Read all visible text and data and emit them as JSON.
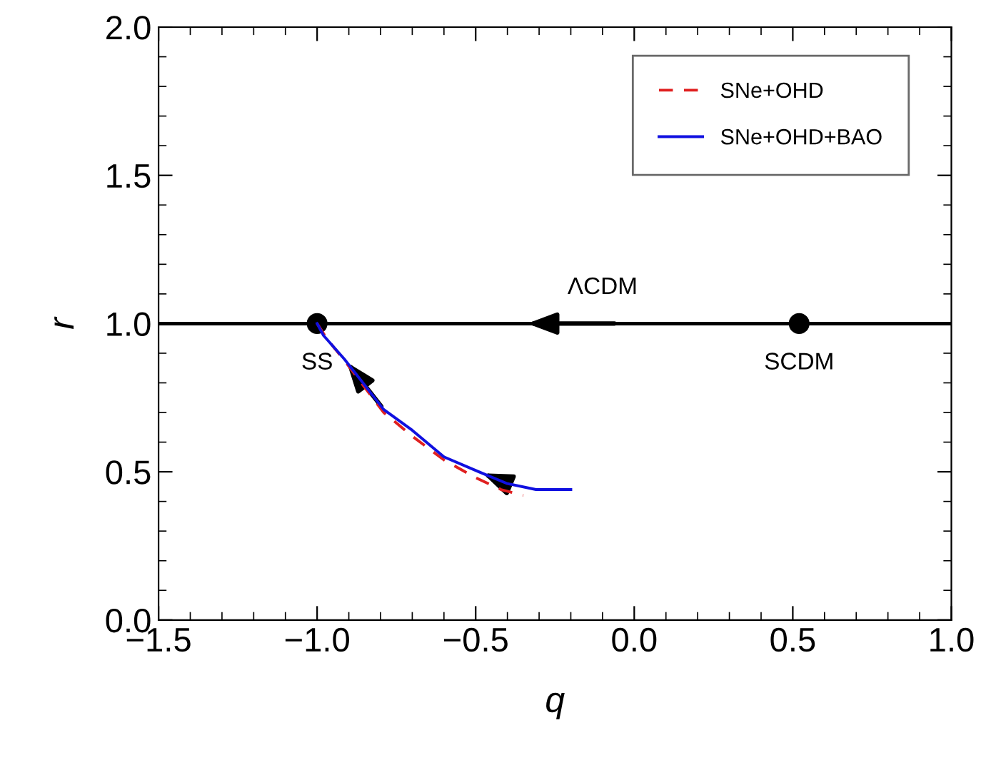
{
  "chart_data": {
    "type": "line",
    "xlabel": "q",
    "ylabel": "r",
    "xlim": [
      -1.5,
      1.0
    ],
    "xticks": [
      {
        "value": -1.5,
        "label": "−1.5"
      },
      {
        "value": -1.0,
        "label": "−1.0"
      },
      {
        "value": -0.5,
        "label": "−0.5"
      },
      {
        "value": 0.0,
        "label": "0.0"
      },
      0.5,
      {
        "value": 1.0,
        "label": "1.0"
      }
    ],
    "ylim": [
      0.0,
      2.0
    ],
    "yticks": [
      {
        "value": 0.0,
        "label": "0.0"
      },
      0.5,
      {
        "value": 1.0,
        "label": "1.0"
      },
      1.5,
      {
        "value": 2.0,
        "label": "2.0"
      }
    ],
    "legend": "top right",
    "series": [
      {
        "name": "SNe+OHD",
        "color": "#e02020",
        "line_style": "dashed",
        "x": [
          -1.0,
          -0.97,
          -0.91,
          -0.79,
          -0.7,
          -0.6,
          -0.5,
          -0.42,
          -0.35
        ],
        "values": [
          1.0,
          0.95,
          0.87,
          0.7,
          0.62,
          0.54,
          0.48,
          0.44,
          0.42
        ]
      },
      {
        "name": "SNe+OHD+BAO",
        "color": "#1010e0",
        "line_style": "solid",
        "x": [
          -1.0,
          -0.98,
          -0.914,
          -0.79,
          -0.7,
          -0.6,
          -0.49,
          -0.4,
          -0.31,
          -0.2
        ],
        "values": [
          1.0,
          0.96,
          0.88,
          0.71,
          0.64,
          0.55,
          0.5,
          0.46,
          0.44,
          0.44
        ]
      },
      {
        "type": "scatter",
        "color": "#000000",
        "marker": "circle",
        "x": [
          -1.0,
          0.52
        ],
        "values": [
          1.0,
          1.0
        ]
      }
    ],
    "ref_lines": [
      {
        "axis": "y",
        "value": 1.0,
        "color": "#000000"
      }
    ],
    "annotations": [
      {
        "text": "SS",
        "x": -1.0,
        "y": 1.0
      },
      {
        "text": "SCDM",
        "x": 0.52,
        "y": 1.0
      },
      {
        "text": "ΛCDM",
        "x": -0.1,
        "y": 1.0
      }
    ]
  }
}
